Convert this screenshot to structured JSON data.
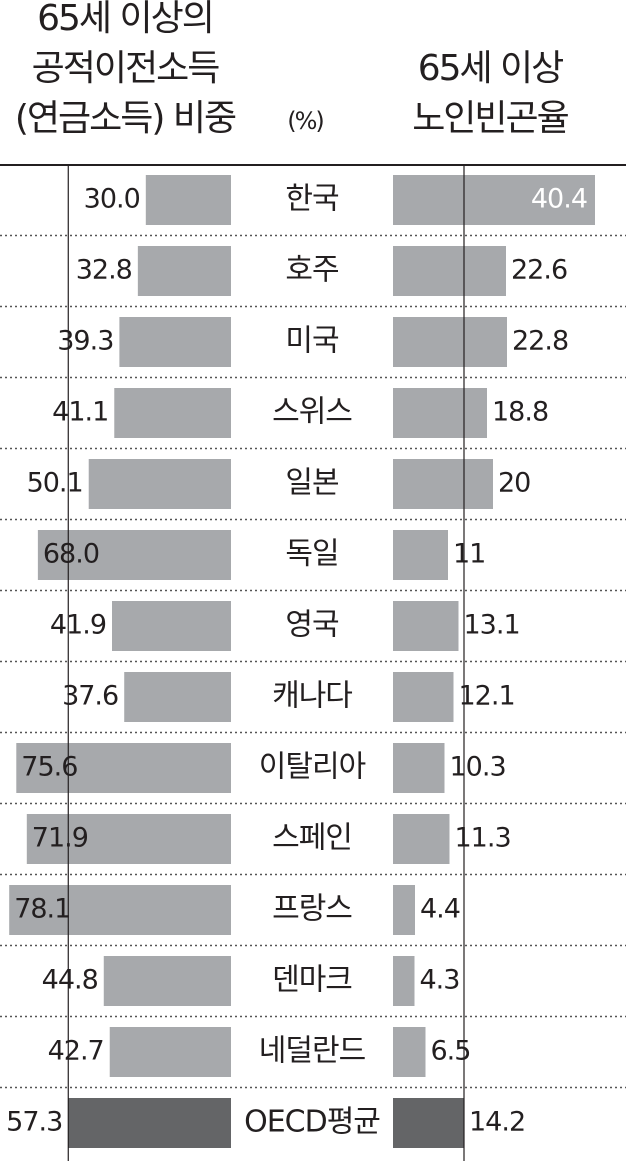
{
  "chart_data": {
    "type": "butterfly-bar",
    "categories": [
      "한국",
      "호주",
      "미국",
      "스위스",
      "일본",
      "독일",
      "영국",
      "캐나다",
      "이탈리아",
      "스페인",
      "프랑스",
      "덴마크",
      "네덜란드",
      "OECD평균"
    ],
    "unit": "(%)",
    "series": [
      {
        "name": [
          "65세 이상의",
          "공적이전소득",
          "(연금소득) 비중"
        ],
        "color": "#a7a9ac",
        "colors": [
          "#a7a9ac",
          "#a7a9ac",
          "#a7a9ac",
          "#a7a9ac",
          "#a7a9ac",
          "#a7a9ac",
          "#a7a9ac",
          "#a7a9ac",
          "#a7a9ac",
          "#a7a9ac",
          "#a7a9ac",
          "#a7a9ac",
          "#a7a9ac",
          "#646567"
        ],
        "values": [
          30.0,
          32.8,
          39.3,
          41.1,
          50.1,
          68.0,
          41.9,
          37.6,
          75.6,
          71.9,
          78.1,
          44.8,
          42.7,
          57.3
        ],
        "value_labels": [
          "30.0",
          "32.8",
          "39.3",
          "41.1",
          "50.1",
          "68.0",
          "41.9",
          "37.6",
          "75.6",
          "71.9",
          "78.1",
          "44.8",
          "42.7",
          "57.3"
        ]
      },
      {
        "name": [
          "65세 이상",
          "노인빈곤율"
        ],
        "color": "#a7a9ac",
        "colors": [
          "#a7a9ac",
          "#a7a9ac",
          "#a7a9ac",
          "#a7a9ac",
          "#a7a9ac",
          "#a7a9ac",
          "#a7a9ac",
          "#a7a9ac",
          "#a7a9ac",
          "#a7a9ac",
          "#a7a9ac",
          "#a7a9ac",
          "#a7a9ac",
          "#646567"
        ],
        "values": [
          40.4,
          22.6,
          22.8,
          18.8,
          20,
          11,
          13.1,
          12.1,
          10.3,
          11.3,
          4.4,
          4.3,
          6.5,
          14.2
        ]
      }
    ]
  }
}
